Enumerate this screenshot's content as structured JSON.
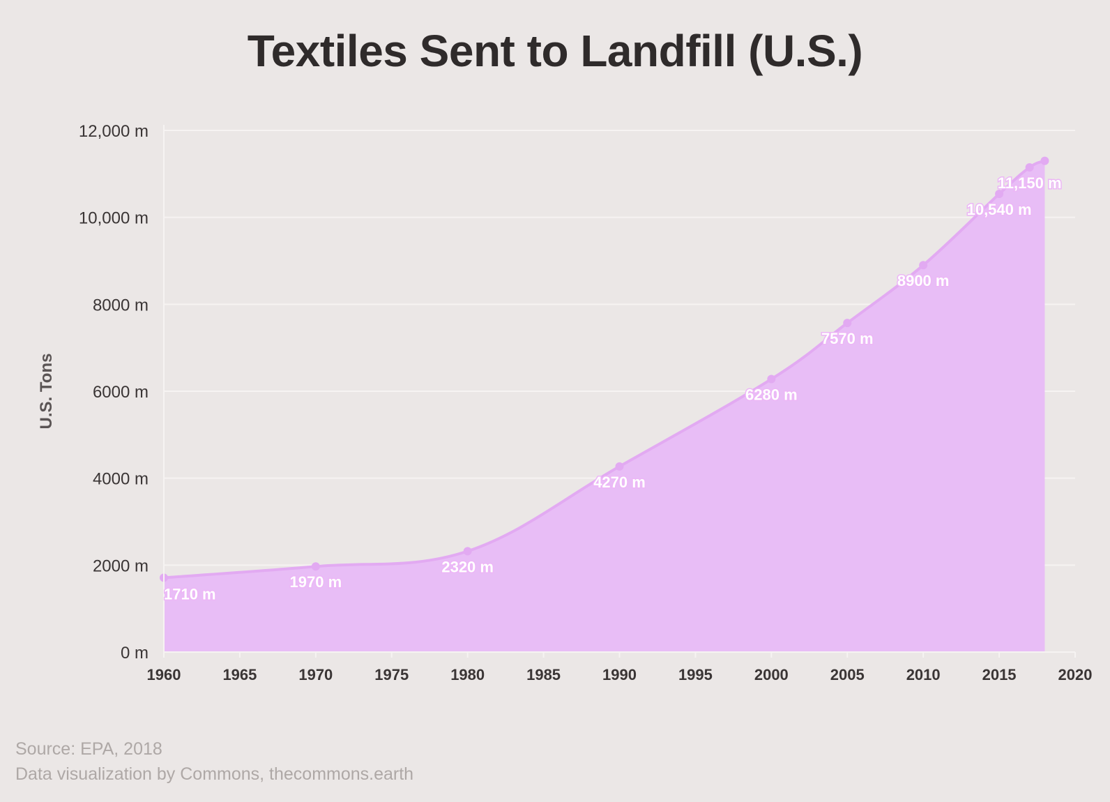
{
  "chart_data": {
    "type": "area",
    "title": "Textiles Sent to Landfill (U.S.)",
    "ylabel": "U.S. Tons",
    "xlabel": "",
    "x": [
      1960,
      1970,
      1980,
      1990,
      2000,
      2005,
      2010,
      2015,
      2017,
      2018
    ],
    "values": [
      1710,
      1970,
      2320,
      4270,
      6280,
      7570,
      8900,
      10540,
      11150,
      11300
    ],
    "data_labels": [
      {
        "x": 1960,
        "text": "1710 m"
      },
      {
        "x": 1970,
        "text": "1970 m"
      },
      {
        "x": 1980,
        "text": "2320 m"
      },
      {
        "x": 1990,
        "text": "4270 m"
      },
      {
        "x": 2000,
        "text": "6280 m"
      },
      {
        "x": 2005,
        "text": "7570 m"
      },
      {
        "x": 2010,
        "text": "8900 m"
      },
      {
        "x": 2015,
        "text": "10,540 m"
      },
      {
        "x": 2017,
        "text": "11,150 m"
      }
    ],
    "xlim": [
      1960,
      2020
    ],
    "ylim": [
      0,
      12000
    ],
    "x_ticks": [
      "1960",
      "1965",
      "1970",
      "1975",
      "1980",
      "1985",
      "1990",
      "1995",
      "2000",
      "2005",
      "2010",
      "2015",
      "2020"
    ],
    "y_ticks": [
      "0 m",
      "2000 m",
      "4000 m",
      "6000 m",
      "8000 m",
      "10,000 m",
      "12,000 m"
    ],
    "grid": true,
    "colors": {
      "fill": "#e8bdf6",
      "line": "#e2aaf2",
      "label_text": "#ffffff",
      "label_halo": "#ecb6f6",
      "grid": "#f6f3f2",
      "background": "#ebe7e6"
    }
  },
  "source": {
    "line1": "Source: EPA, 2018",
    "line2": "Data visualization by Commons, thecommons.earth"
  }
}
